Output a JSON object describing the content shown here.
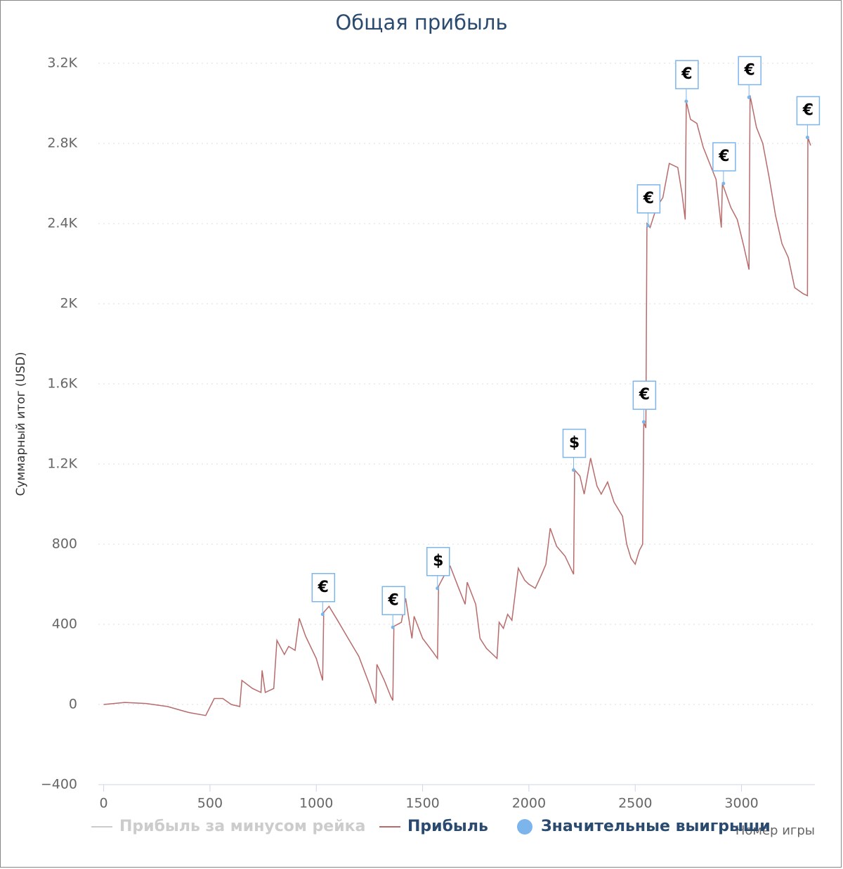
{
  "chart_data": {
    "type": "line",
    "title": "Общая прибыль",
    "x_label": "Номер игры",
    "y_label": "Суммарный итог (USD)",
    "xlim": [
      -25,
      3345
    ],
    "ylim": [
      -400,
      3200
    ],
    "xticks": [
      0,
      500,
      1000,
      1500,
      2000,
      2500,
      3000
    ],
    "yticks": [
      {
        "value": -400,
        "label": "−400"
      },
      0,
      400,
      800,
      {
        "value": 1200,
        "label": "1.2K"
      },
      {
        "value": 1600,
        "label": "1.6K"
      },
      {
        "value": 2000,
        "label": "2K"
      },
      {
        "value": 2400,
        "label": "2.4K"
      },
      {
        "value": 2800,
        "label": "2.8K"
      },
      {
        "value": 3200,
        "label": "3.2K"
      }
    ],
    "grid": true,
    "series": [
      {
        "name": "Прибыль за минусом рейка",
        "color": "#cccccc",
        "visible": false
      },
      {
        "name": "Прибыль",
        "color": "#b86b6b",
        "x": [
          0,
          100,
          200,
          300,
          400,
          480,
          520,
          560,
          600,
          640,
          650,
          700,
          740,
          745,
          760,
          800,
          815,
          850,
          870,
          900,
          920,
          950,
          1000,
          1030,
          1035,
          1060,
          1100,
          1150,
          1200,
          1250,
          1280,
          1285,
          1320,
          1350,
          1360,
          1365,
          1400,
          1420,
          1450,
          1460,
          1500,
          1550,
          1570,
          1575,
          1600,
          1630,
          1670,
          1700,
          1710,
          1750,
          1770,
          1800,
          1850,
          1860,
          1880,
          1900,
          1920,
          1950,
          1980,
          2000,
          2030,
          2060,
          2080,
          2100,
          2130,
          2170,
          2210,
          2215,
          2240,
          2260,
          2290,
          2320,
          2340,
          2370,
          2400,
          2440,
          2460,
          2480,
          2500,
          2520,
          2535,
          2540,
          2550,
          2555,
          2570,
          2600,
          2630,
          2660,
          2700,
          2720,
          2735,
          2740,
          2760,
          2790,
          2820,
          2850,
          2880,
          2905,
          2910,
          2950,
          2980,
          3010,
          3035,
          3040,
          3070,
          3100,
          3130,
          3160,
          3190,
          3220,
          3250,
          3290,
          3310,
          3312,
          3325
        ],
        "values": [
          0,
          10,
          5,
          -10,
          -40,
          -55,
          30,
          30,
          0,
          -10,
          120,
          80,
          60,
          170,
          60,
          80,
          320,
          250,
          290,
          270,
          430,
          340,
          230,
          120,
          460,
          490,
          420,
          330,
          240,
          100,
          5,
          200,
          120,
          40,
          20,
          390,
          410,
          530,
          330,
          440,
          330,
          260,
          230,
          590,
          640,
          690,
          580,
          500,
          610,
          500,
          330,
          280,
          230,
          410,
          380,
          450,
          420,
          680,
          620,
          600,
          580,
          650,
          700,
          880,
          790,
          740,
          650,
          1170,
          1140,
          1050,
          1230,
          1090,
          1050,
          1110,
          1010,
          940,
          800,
          730,
          700,
          770,
          800,
          1410,
          1380,
          2400,
          2380,
          2480,
          2530,
          2700,
          2680,
          2550,
          2420,
          3010,
          2920,
          2900,
          2780,
          2700,
          2620,
          2380,
          2600,
          2480,
          2420,
          2290,
          2170,
          3040,
          2880,
          2800,
          2630,
          2440,
          2300,
          2230,
          2080,
          2050,
          2040,
          2830,
          2790
        ]
      },
      {
        "name": "Значительные выигрыши",
        "color": "#7cb5ec",
        "x": [
          1030,
          1360,
          1570,
          2210,
          2540,
          2560,
          2740,
          2915,
          3035,
          3310
        ],
        "values": [
          450,
          385,
          580,
          1170,
          1410,
          2390,
          3010,
          2600,
          3030,
          2830
        ],
        "labels": [
          "€",
          "€",
          "$",
          "$",
          "€",
          "€",
          "€",
          "€",
          "€",
          "€"
        ]
      }
    ]
  }
}
